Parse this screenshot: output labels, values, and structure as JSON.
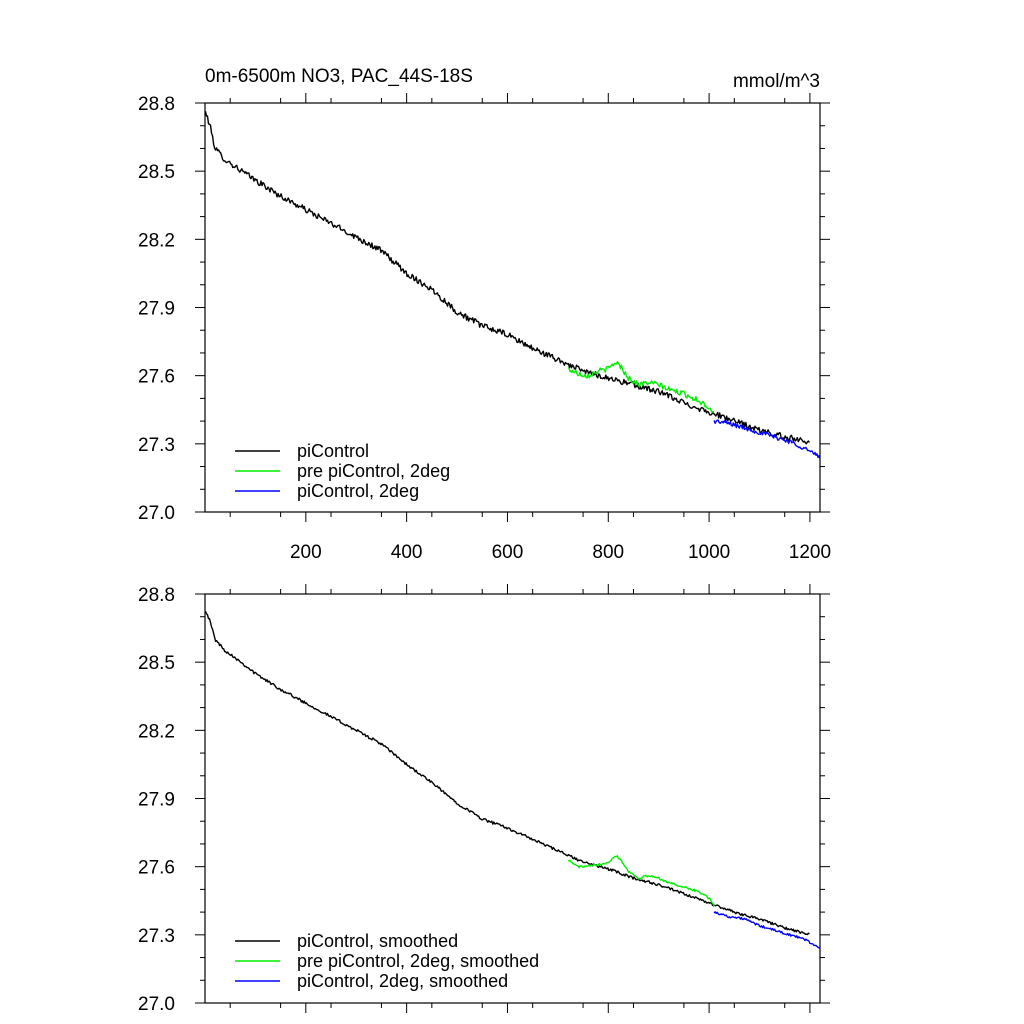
{
  "chart_data": [
    {
      "type": "line",
      "title": "0m-6500m NO3, PAC_44S-18S",
      "units": "mmol/m^3",
      "xlim": [
        0,
        1220
      ],
      "ylim": [
        27.0,
        28.8
      ],
      "xticks": [
        200,
        400,
        600,
        800,
        1000,
        1200
      ],
      "xtick_labels": [
        "200",
        "400",
        "600",
        "800",
        "1000",
        "1200"
      ],
      "yticks": [
        27.0,
        27.3,
        27.6,
        27.9,
        28.2,
        28.5,
        28.8
      ],
      "ytick_labels": [
        "27.0",
        "27.3",
        "27.6",
        "27.9",
        "28.2",
        "28.5",
        "28.8"
      ],
      "legend_position": "bottom-left",
      "series": [
        {
          "name": "piControl",
          "color": "#000000",
          "noise": 0.013,
          "x": [
            1,
            10,
            20,
            40,
            60,
            100,
            150,
            200,
            250,
            300,
            350,
            400,
            450,
            500,
            550,
            600,
            650,
            700,
            750,
            800,
            850,
            900,
            950,
            1000,
            1050,
            1100,
            1150,
            1200
          ],
          "y": [
            28.76,
            28.7,
            28.6,
            28.55,
            28.52,
            28.46,
            28.39,
            28.33,
            28.27,
            28.21,
            28.15,
            28.05,
            27.98,
            27.88,
            27.82,
            27.78,
            27.72,
            27.67,
            27.62,
            27.59,
            27.56,
            27.53,
            27.48,
            27.44,
            27.4,
            27.36,
            27.33,
            27.31
          ]
        },
        {
          "name": "pre piControl, 2deg",
          "color": "#00ee00",
          "noise": 0.012,
          "x": [
            720,
            740,
            760,
            780,
            800,
            815,
            825,
            840,
            860,
            880,
            900,
            920,
            950,
            980,
            1000,
            1010
          ],
          "y": [
            27.63,
            27.61,
            27.6,
            27.62,
            27.63,
            27.66,
            27.64,
            27.59,
            27.56,
            27.57,
            27.56,
            27.54,
            27.52,
            27.49,
            27.46,
            27.44
          ]
        },
        {
          "name": "piControl, 2deg",
          "color": "#0000ff",
          "noise": 0.01,
          "x": [
            1010,
            1040,
            1070,
            1100,
            1130,
            1160,
            1190,
            1220
          ],
          "y": [
            27.4,
            27.39,
            27.37,
            27.35,
            27.33,
            27.31,
            27.28,
            27.24
          ]
        }
      ]
    },
    {
      "type": "line",
      "title": "",
      "units": "",
      "xlim": [
        0,
        1220
      ],
      "ylim": [
        27.0,
        28.8
      ],
      "xticks": [
        200,
        400,
        600,
        800,
        1000,
        1200
      ],
      "xtick_labels": [],
      "yticks": [
        27.0,
        27.3,
        27.6,
        27.9,
        28.2,
        28.5,
        28.8
      ],
      "ytick_labels": [
        "27.0",
        "27.3",
        "27.6",
        "27.9",
        "28.2",
        "28.5",
        "28.8"
      ],
      "legend_position": "bottom-left",
      "series": [
        {
          "name": "piControl, smoothed",
          "color": "#000000",
          "noise": 0.006,
          "x": [
            1,
            10,
            20,
            40,
            60,
            100,
            150,
            200,
            250,
            300,
            350,
            400,
            450,
            500,
            550,
            600,
            650,
            700,
            750,
            800,
            850,
            900,
            950,
            1000,
            1050,
            1100,
            1150,
            1200
          ],
          "y": [
            28.73,
            28.68,
            28.6,
            28.55,
            28.52,
            28.45,
            28.38,
            28.32,
            28.26,
            28.2,
            28.14,
            28.05,
            27.97,
            27.88,
            27.81,
            27.77,
            27.72,
            27.67,
            27.62,
            27.59,
            27.55,
            27.52,
            27.48,
            27.44,
            27.4,
            27.37,
            27.33,
            27.3
          ]
        },
        {
          "name": "pre piControl, 2deg, smoothed",
          "color": "#00ee00",
          "noise": 0.005,
          "x": [
            720,
            740,
            760,
            780,
            800,
            815,
            825,
            840,
            860,
            880,
            900,
            920,
            950,
            980,
            1000,
            1010
          ],
          "y": [
            27.63,
            27.6,
            27.6,
            27.61,
            27.62,
            27.65,
            27.63,
            27.58,
            27.55,
            27.56,
            27.55,
            27.53,
            27.51,
            27.49,
            27.46,
            27.43
          ]
        },
        {
          "name": "piControl, 2deg, smoothed",
          "color": "#0000ff",
          "noise": 0.005,
          "x": [
            1010,
            1040,
            1070,
            1100,
            1130,
            1160,
            1190,
            1220
          ],
          "y": [
            27.4,
            27.38,
            27.37,
            27.34,
            27.32,
            27.3,
            27.28,
            27.24
          ]
        }
      ]
    }
  ]
}
